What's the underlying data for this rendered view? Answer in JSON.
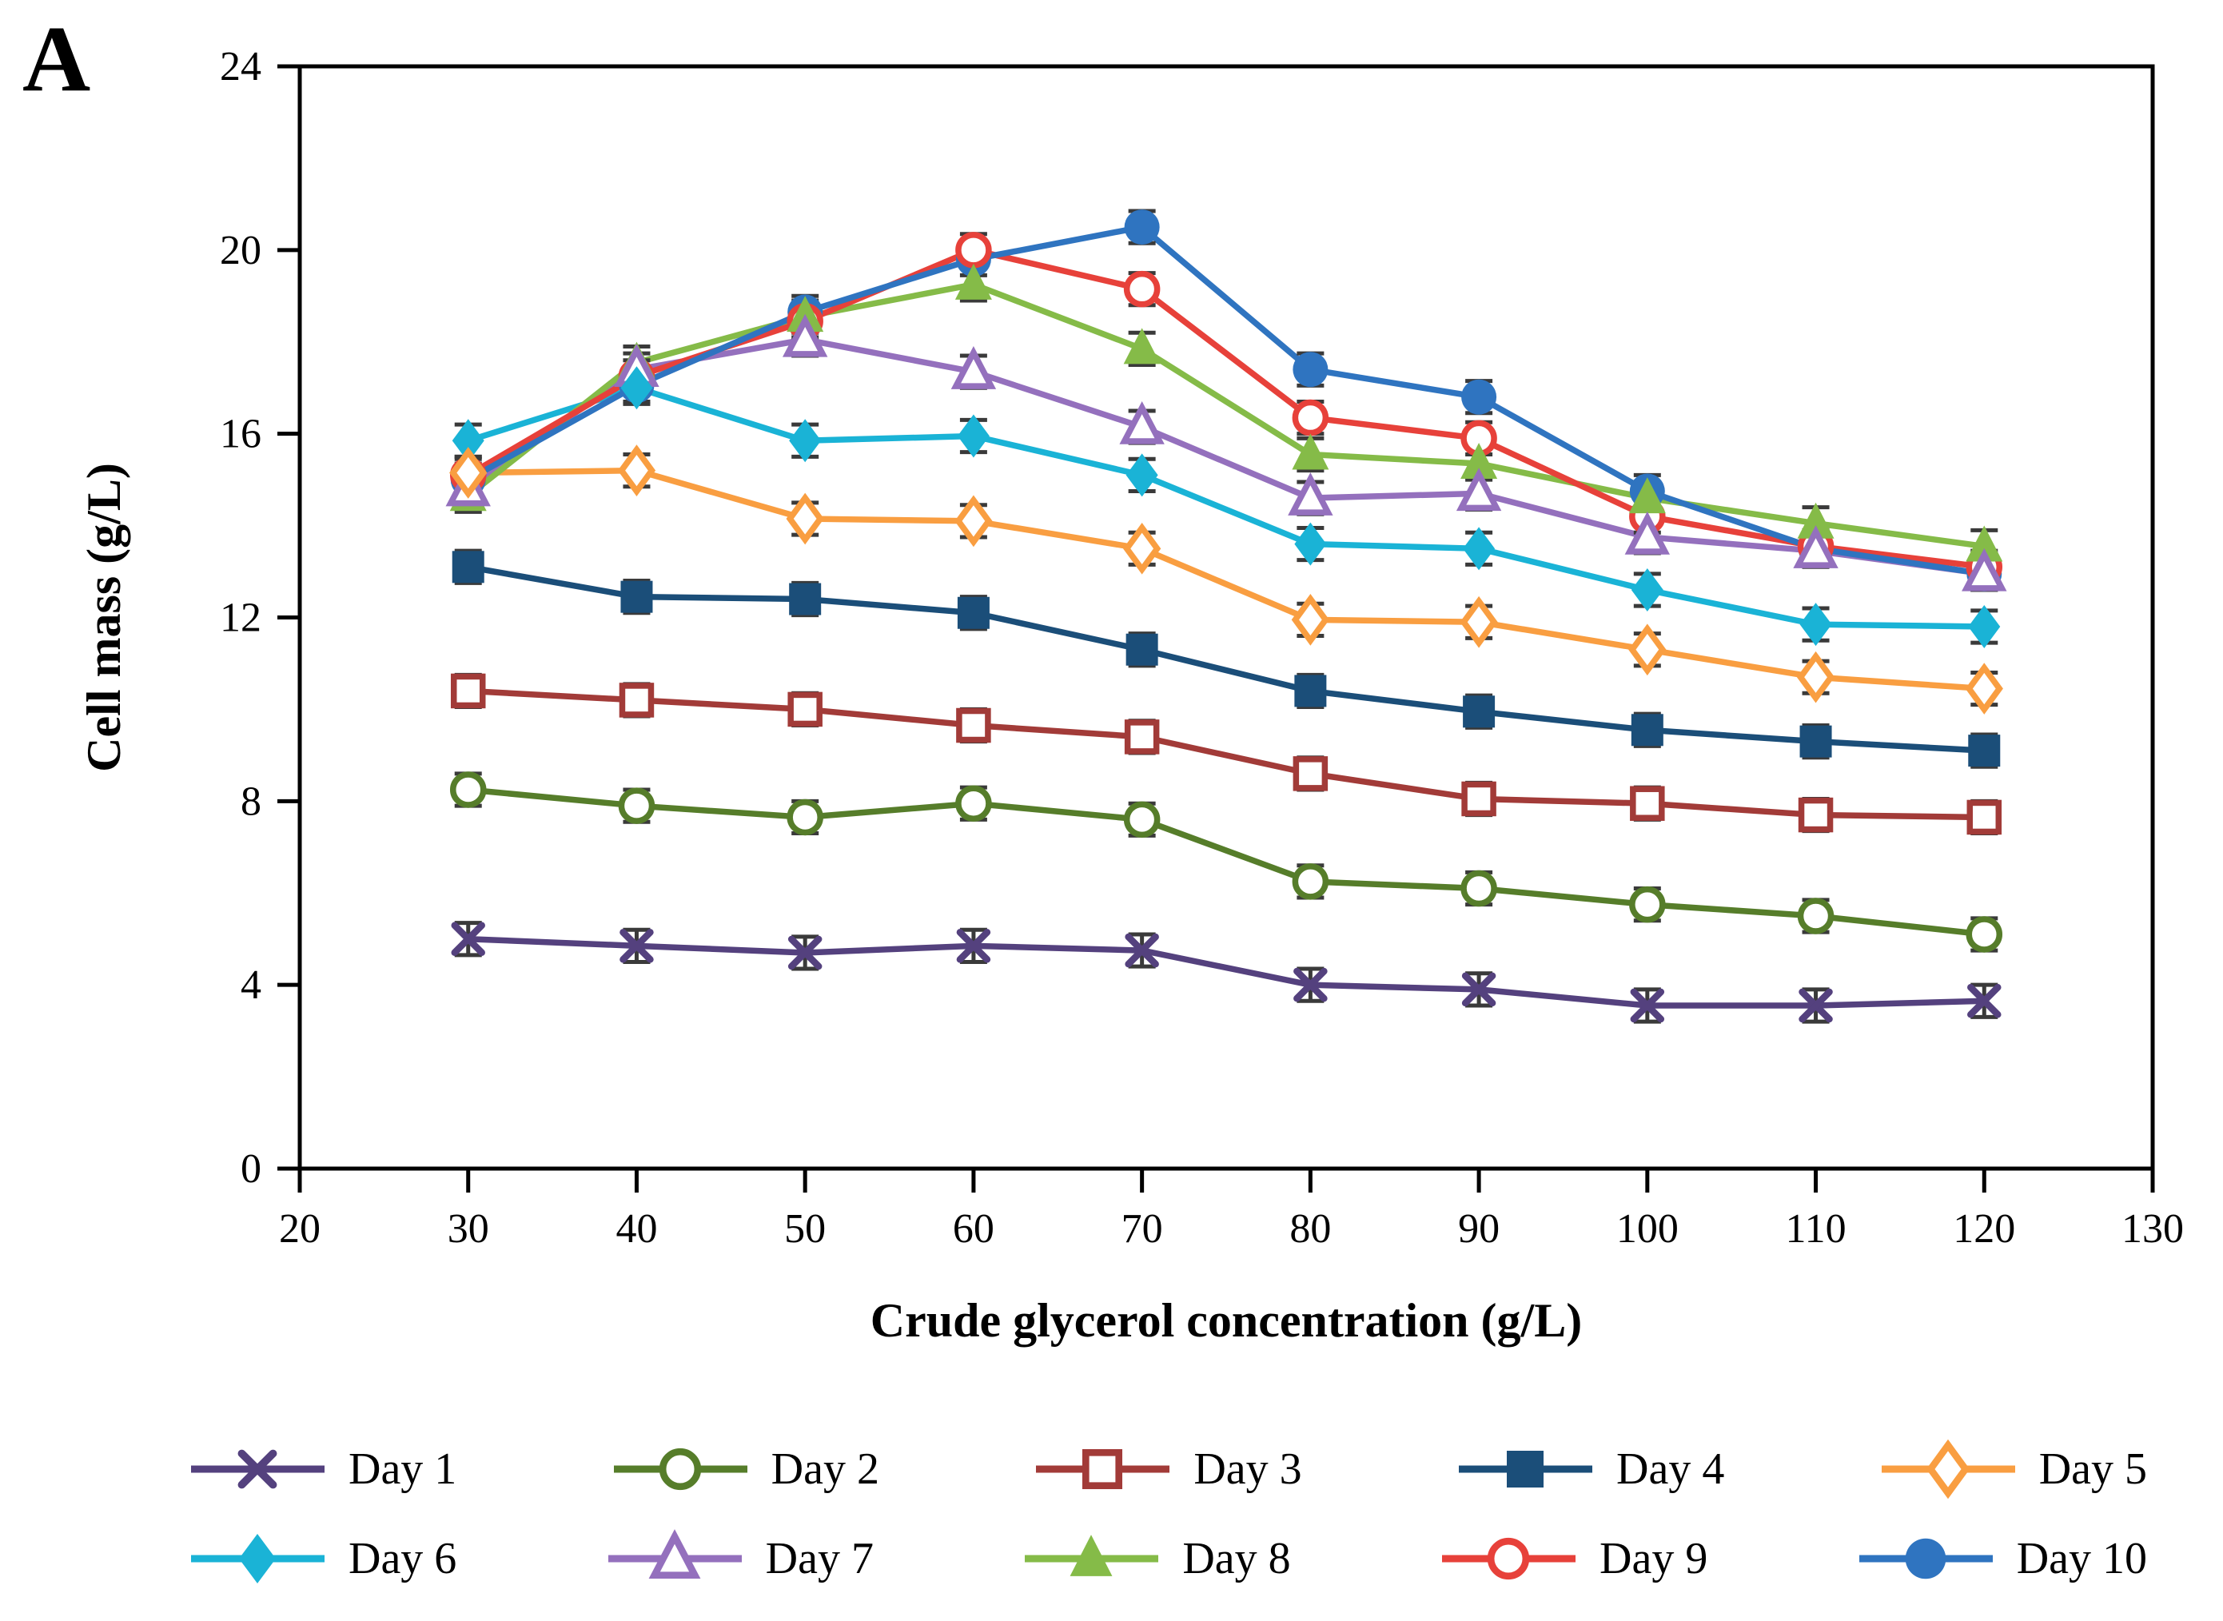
{
  "panel_label": "A",
  "chart_data": {
    "type": "line",
    "title": "",
    "xlabel": "Crude glycerol concentration (g/L)",
    "ylabel": "Cell mass (g/L)",
    "x": [
      30,
      40,
      50,
      60,
      70,
      80,
      90,
      100,
      110,
      120
    ],
    "xlim": [
      20,
      130
    ],
    "ylim": [
      0,
      24
    ],
    "x_ticks": [
      20,
      30,
      40,
      50,
      60,
      70,
      80,
      90,
      100,
      110,
      120,
      130
    ],
    "y_ticks": [
      0,
      4,
      8,
      12,
      16,
      20,
      24
    ],
    "grid": false,
    "frame": true,
    "legend_position": "bottom",
    "error_bar": 0.35,
    "error_bar_color": "#3a3a3a",
    "series": [
      {
        "name": "Day 1",
        "color": "#54417e",
        "marker": "x",
        "values": [
          5.0,
          4.85,
          4.7,
          4.85,
          4.75,
          4.0,
          3.9,
          3.55,
          3.55,
          3.65
        ]
      },
      {
        "name": "Day 2",
        "color": "#567d2a",
        "marker": "circle-open",
        "values": [
          8.25,
          7.9,
          7.65,
          7.95,
          7.6,
          6.25,
          6.1,
          5.75,
          5.5,
          5.1
        ]
      },
      {
        "name": "Day 3",
        "color": "#a23b38",
        "marker": "square-open",
        "values": [
          10.4,
          10.2,
          10.0,
          9.65,
          9.4,
          8.6,
          8.05,
          7.95,
          7.7,
          7.65
        ]
      },
      {
        "name": "Day 4",
        "color": "#1b4e79",
        "marker": "square-filled",
        "values": [
          13.1,
          12.45,
          12.4,
          12.1,
          11.3,
          10.4,
          9.95,
          9.55,
          9.3,
          9.1
        ]
      },
      {
        "name": "Day 5",
        "color": "#f99e41",
        "marker": "diamond-open",
        "values": [
          15.15,
          15.2,
          14.15,
          14.1,
          13.5,
          11.95,
          11.9,
          11.3,
          10.7,
          10.45
        ]
      },
      {
        "name": "Day 6",
        "color": "#1ab3d6",
        "marker": "diamond-filled",
        "values": [
          15.85,
          17.0,
          15.85,
          15.95,
          15.1,
          13.6,
          13.5,
          12.6,
          11.85,
          11.8
        ]
      },
      {
        "name": "Day 7",
        "color": "#9470bd",
        "marker": "triangle-open",
        "values": [
          14.8,
          17.4,
          18.05,
          17.35,
          16.15,
          14.6,
          14.7,
          13.75,
          13.45,
          12.95
        ]
      },
      {
        "name": "Day 8",
        "color": "#85bb48",
        "marker": "triangle-filled",
        "values": [
          14.65,
          17.55,
          18.55,
          19.25,
          17.85,
          15.55,
          15.35,
          14.6,
          14.05,
          13.55
        ]
      },
      {
        "name": "Day 9",
        "color": "#e7413a",
        "marker": "circle-open",
        "values": [
          15.1,
          17.25,
          18.45,
          20.0,
          19.15,
          16.35,
          15.9,
          14.2,
          13.55,
          13.1
        ]
      },
      {
        "name": "Day 10",
        "color": "#2f74c0",
        "marker": "circle-filled",
        "values": [
          15.0,
          17.05,
          18.65,
          19.8,
          20.5,
          17.4,
          16.8,
          14.75,
          13.5,
          12.95
        ]
      }
    ]
  }
}
